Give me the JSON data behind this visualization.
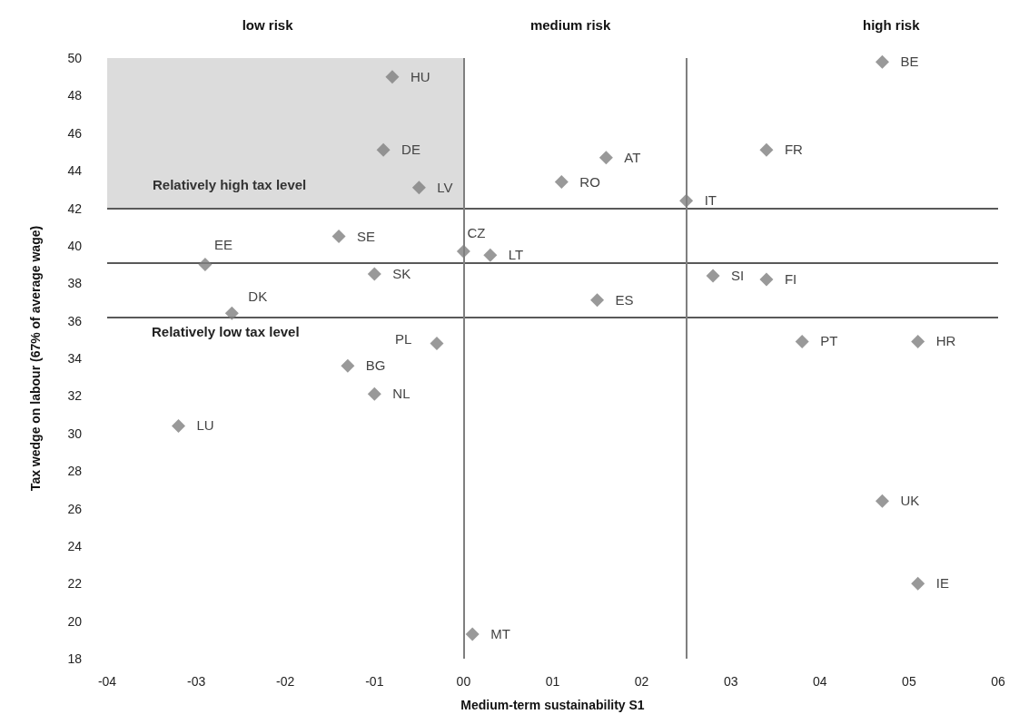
{
  "chart_data": {
    "type": "scatter",
    "xlabel": "Medium-term sustainability S1",
    "ylabel": "Tax wedge on labour (67% of average wage)",
    "xlim": [
      -4,
      6
    ],
    "xticks": [
      {
        "value": -4,
        "label": "-04"
      },
      {
        "value": -3,
        "label": "-03"
      },
      {
        "value": -2,
        "label": "-02"
      },
      {
        "value": -1,
        "label": "-01"
      },
      {
        "value": 0,
        "label": "00"
      },
      {
        "value": 1,
        "label": "01"
      },
      {
        "value": 2,
        "label": "02"
      },
      {
        "value": 3,
        "label": "03"
      },
      {
        "value": 4,
        "label": "04"
      },
      {
        "value": 5,
        "label": "05"
      },
      {
        "value": 6,
        "label": "06"
      }
    ],
    "ylim": [
      18,
      50
    ],
    "yticks": [
      18,
      20,
      22,
      24,
      26,
      28,
      30,
      32,
      34,
      36,
      38,
      40,
      42,
      44,
      46,
      48,
      50
    ],
    "grid": false,
    "marker": "diamond",
    "series": [
      {
        "color": "#7f7f7f",
        "x": [
          -0.8,
          -0.9,
          -0.5,
          -1.4,
          -2.9,
          -1.0,
          -2.6,
          0.0,
          0.3,
          -0.3,
          -1.3,
          -1.0,
          -3.2,
          0.1,
          1.6,
          1.1,
          2.5,
          4.7,
          3.4,
          2.8,
          3.4,
          1.5,
          3.8,
          5.1,
          4.7,
          5.1
        ],
        "values": [
          49.0,
          45.1,
          43.1,
          40.5,
          39.0,
          38.5,
          36.4,
          39.7,
          39.5,
          34.8,
          33.6,
          32.1,
          30.4,
          19.3,
          44.7,
          43.4,
          42.4,
          49.8,
          45.1,
          38.4,
          38.2,
          37.1,
          34.9,
          34.9,
          26.4,
          22.0
        ]
      }
    ],
    "ref_lines": [
      {
        "axis": "y",
        "value": 42,
        "color": "#595959"
      },
      {
        "axis": "y",
        "value": 39.1,
        "color": "#595959"
      },
      {
        "axis": "y",
        "value": 36.2,
        "color": "#595959"
      },
      {
        "axis": "x",
        "value": 0,
        "color": "#7f7f7f"
      },
      {
        "axis": "x",
        "value": 2.5,
        "color": "#7f7f7f"
      }
    ],
    "bands": [
      {
        "axis": "y",
        "from": 42,
        "to": 50,
        "label": "Relatively high tax level",
        "color": "#dcdcdc"
      }
    ],
    "annotations": [
      "low risk",
      "medium risk",
      "high risk",
      "Relatively low tax level",
      {
        "text": "HU",
        "x": -0.8,
        "y": 49.0
      },
      {
        "text": "DE",
        "x": -0.9,
        "y": 45.1
      },
      {
        "text": "LV",
        "x": -0.5,
        "y": 43.1
      },
      {
        "text": "SE",
        "x": -1.4,
        "y": 40.5
      },
      {
        "text": "EE",
        "x": -2.9,
        "y": 39.0
      },
      {
        "text": "SK",
        "x": -1.0,
        "y": 38.5
      },
      {
        "text": "DK",
        "x": -2.6,
        "y": 36.4
      },
      {
        "text": "CZ",
        "x": 0.0,
        "y": 39.7
      },
      {
        "text": "LT",
        "x": 0.3,
        "y": 39.5
      },
      {
        "text": "PL",
        "x": -0.3,
        "y": 34.8
      },
      {
        "text": "BG",
        "x": -1.3,
        "y": 33.6
      },
      {
        "text": "NL",
        "x": -1.0,
        "y": 32.1
      },
      {
        "text": "LU",
        "x": -3.2,
        "y": 30.4
      },
      {
        "text": "MT",
        "x": 0.1,
        "y": 19.3
      },
      {
        "text": "AT",
        "x": 1.6,
        "y": 44.7
      },
      {
        "text": "RO",
        "x": 1.1,
        "y": 43.4
      },
      {
        "text": "IT",
        "x": 2.5,
        "y": 42.4
      },
      {
        "text": "BE",
        "x": 4.7,
        "y": 49.8
      },
      {
        "text": "FR",
        "x": 3.4,
        "y": 45.1
      },
      {
        "text": "SI",
        "x": 2.8,
        "y": 38.4
      },
      {
        "text": "FI",
        "x": 3.4,
        "y": 38.2
      },
      {
        "text": "ES",
        "x": 1.5,
        "y": 37.1
      },
      {
        "text": "PT",
        "x": 3.8,
        "y": 34.9
      },
      {
        "text": "HR",
        "x": 5.1,
        "y": 34.9
      },
      {
        "text": "UK",
        "x": 4.7,
        "y": 26.4
      },
      {
        "text": "IE",
        "x": 5.1,
        "y": 22.0
      }
    ]
  }
}
